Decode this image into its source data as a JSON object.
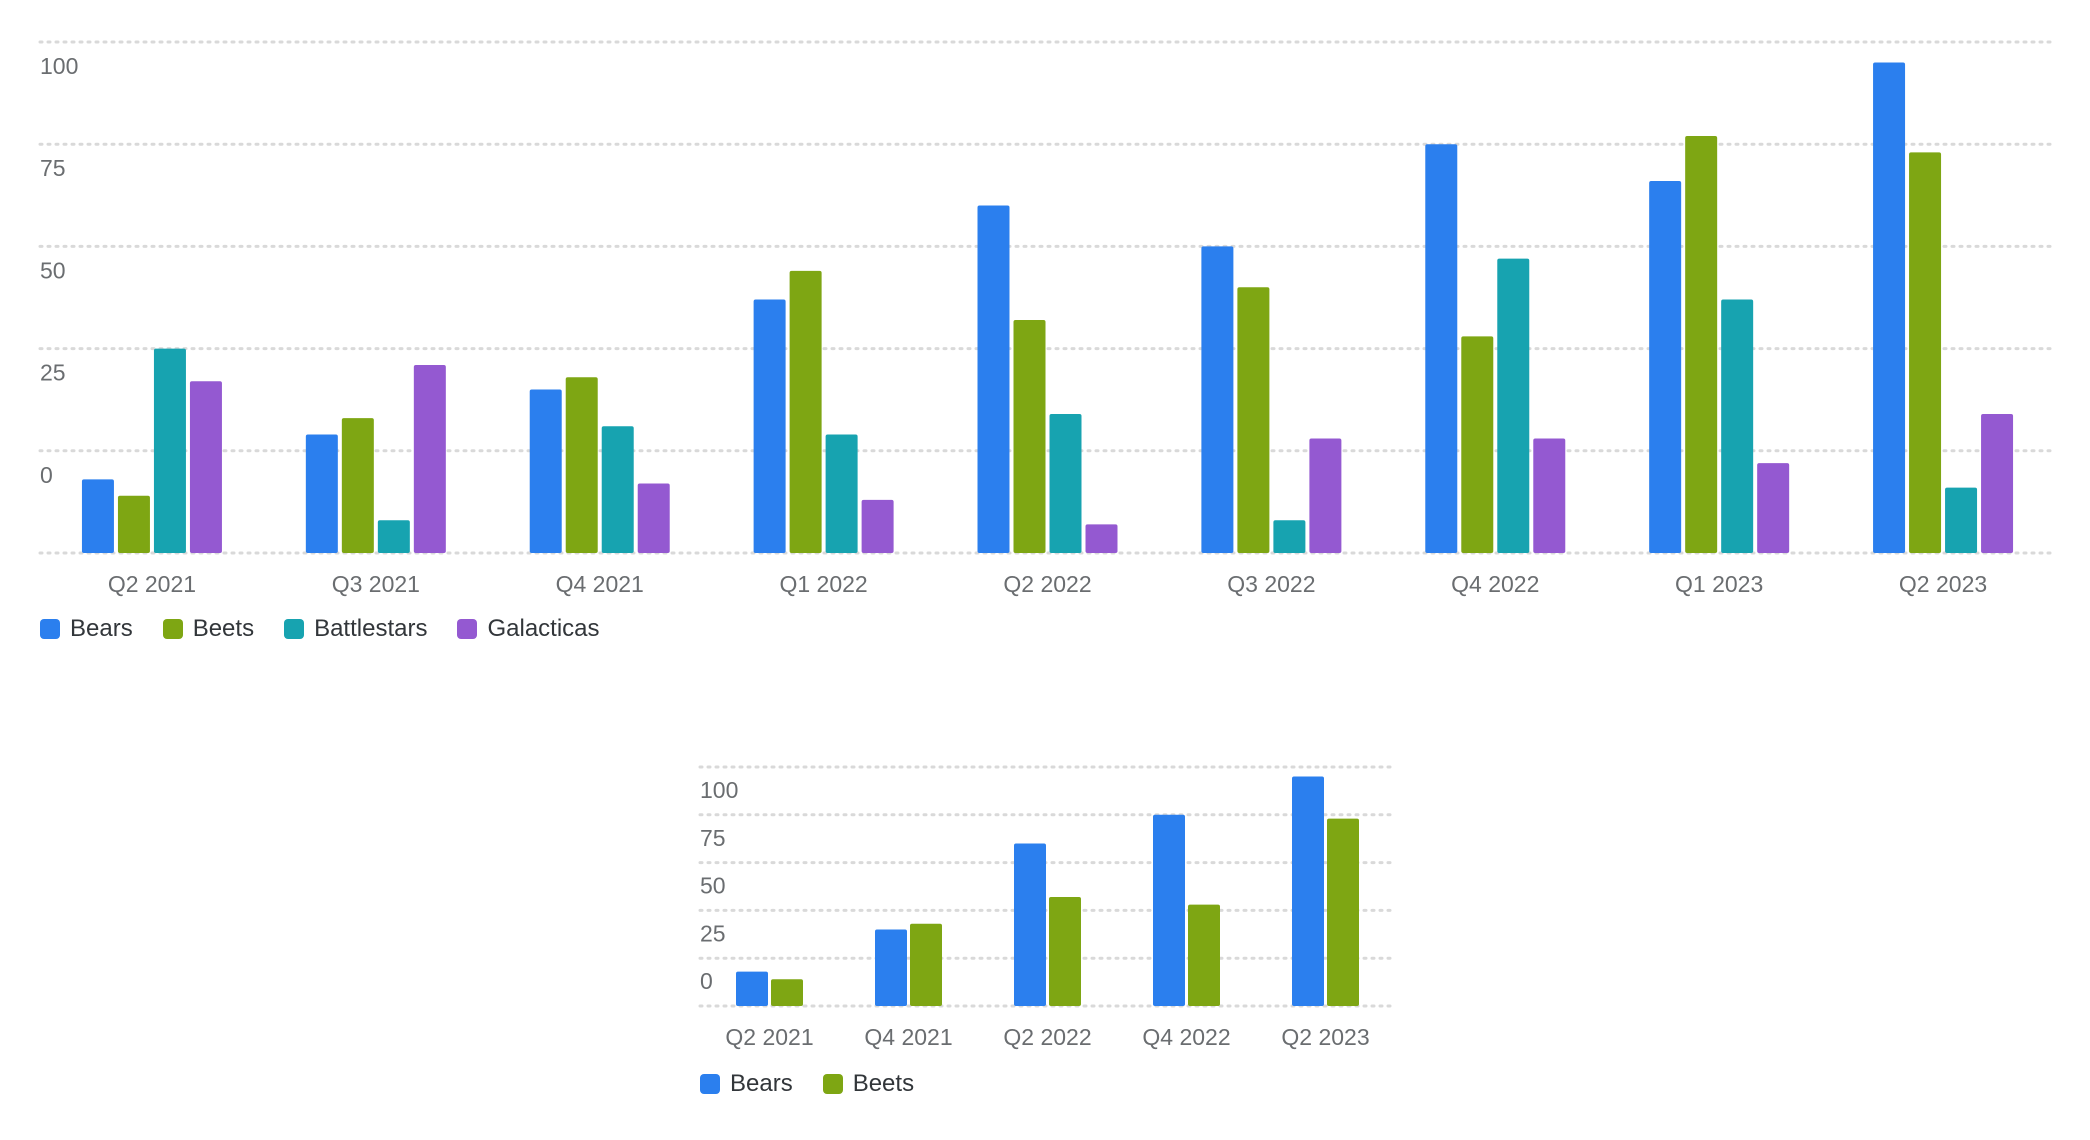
{
  "chart_data": [
    {
      "type": "bar",
      "title": "",
      "xlabel": "",
      "ylabel": "",
      "grid": true,
      "legend_position": "bottom-left",
      "y_tick_labels": [
        "100",
        "75",
        "50",
        "25",
        "0"
      ],
      "categories": [
        "Q2 2021",
        "Q3 2021",
        "Q4 2021",
        "Q1 2022",
        "Q2 2022",
        "Q3 2022",
        "Q4 2022",
        "Q1 2023",
        "Q2 2023"
      ],
      "series": [
        {
          "name": "Bears",
          "color": "#2b7fee",
          "values": [
            -7,
            4,
            15,
            37,
            60,
            50,
            75,
            66,
            95
          ]
        },
        {
          "name": "Beets",
          "color": "#7ea613",
          "values": [
            -11,
            8,
            18,
            44,
            32,
            40,
            28,
            77,
            73
          ]
        },
        {
          "name": "Battlestars",
          "color": "#17a3b0",
          "values": [
            25,
            -17,
            6,
            4,
            9,
            -17,
            47,
            37,
            -9
          ]
        },
        {
          "name": "Galacticas",
          "color": "#9459d1",
          "values": [
            17,
            21,
            -8,
            -12,
            -18,
            3,
            3,
            -3,
            9
          ]
        }
      ]
    },
    {
      "type": "bar",
      "title": "",
      "xlabel": "",
      "ylabel": "",
      "grid": true,
      "legend_position": "bottom-left",
      "y_tick_labels": [
        "100",
        "75",
        "50",
        "25",
        "0"
      ],
      "categories": [
        "Q2 2021",
        "Q4 2021",
        "Q2 2022",
        "Q4 2022",
        "Q2 2023"
      ],
      "series": [
        {
          "name": "Bears",
          "color": "#2b7fee",
          "values": [
            -7,
            15,
            60,
            75,
            95
          ]
        },
        {
          "name": "Beets",
          "color": "#7ea613",
          "values": [
            -11,
            18,
            32,
            28,
            73
          ]
        }
      ]
    }
  ]
}
